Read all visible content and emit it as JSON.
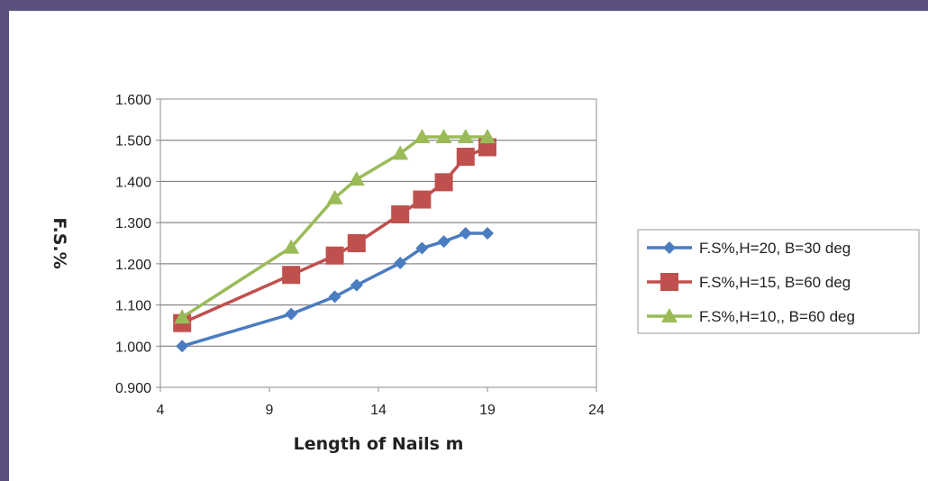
{
  "chart_data": {
    "type": "line",
    "xlabel": "Length of Nails m",
    "ylabel": "F.S.%",
    "xlim": [
      4,
      24
    ],
    "ylim": [
      0.9,
      1.6
    ],
    "xticks": [
      "4",
      "9",
      "14",
      "19",
      "24"
    ],
    "yticks": [
      "0.900",
      "1.000",
      "1.100",
      "1.200",
      "1.300",
      "1.400",
      "1.500",
      "1.600"
    ],
    "grid": "horizontal",
    "legend_position": "right",
    "series": [
      {
        "name": "F.S%,H=20, B=30 deg",
        "color": "#4a7cc0",
        "marker": "diamond",
        "x": [
          5,
          10,
          12,
          13,
          15,
          16,
          17,
          18,
          19
        ],
        "y": [
          1.0,
          1.078,
          1.12,
          1.148,
          1.202,
          1.238,
          1.254,
          1.274,
          1.274
        ]
      },
      {
        "name": "F.S%,H=15, B=60 deg",
        "color": "#c0504d",
        "marker": "square",
        "x": [
          5,
          10,
          12,
          13,
          15,
          16,
          17,
          18,
          19
        ],
        "y": [
          1.056,
          1.173,
          1.22,
          1.25,
          1.32,
          1.356,
          1.398,
          1.46,
          1.483
        ]
      },
      {
        "name": "F.S%,H=10,, B=60 deg",
        "color": "#9bbb59",
        "marker": "triangle",
        "x": [
          5,
          10,
          12,
          13,
          15,
          16,
          17,
          18,
          19
        ],
        "y": [
          1.07,
          1.24,
          1.36,
          1.405,
          1.468,
          1.508,
          1.508,
          1.508,
          1.508
        ]
      }
    ]
  }
}
